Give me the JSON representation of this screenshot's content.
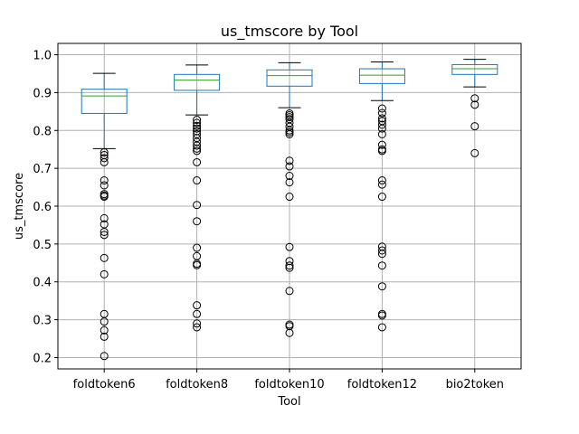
{
  "chart_data": {
    "type": "box",
    "title": "us_tmscore by Tool",
    "xlabel": "Tool",
    "ylabel": "us_tmscore",
    "ylim": [
      0.17,
      1.03
    ],
    "yticks": [
      0.2,
      0.3,
      0.4,
      0.5,
      0.6,
      0.7,
      0.8,
      0.9,
      1.0
    ],
    "ytick_labels": [
      "0.2",
      "0.3",
      "0.4",
      "0.5",
      "0.6",
      "0.7",
      "0.8",
      "0.9",
      "1.0"
    ],
    "grid": true,
    "categories": [
      "foldtoken6",
      "foldtoken8",
      "foldtoken10",
      "foldtoken12",
      "bio2token"
    ],
    "colors": {
      "box": "#1f77b4",
      "median": "#2ca02c",
      "whisker": "#000000",
      "grid": "#b0b0b0"
    },
    "boxes": [
      {
        "name": "foldtoken6",
        "whislo": 0.752,
        "q1": 0.845,
        "med": 0.891,
        "q3": 0.909,
        "whishi": 0.951,
        "fliers": [
          0.742,
          0.735,
          0.727,
          0.716,
          0.668,
          0.655,
          0.632,
          0.628,
          0.625,
          0.568,
          0.552,
          0.532,
          0.524,
          0.463,
          0.42,
          0.315,
          0.295,
          0.272,
          0.255,
          0.204
        ]
      },
      {
        "name": "foldtoken8",
        "whislo": 0.841,
        "q1": 0.906,
        "med": 0.933,
        "q3": 0.948,
        "whishi": 0.973,
        "fliers": [
          0.828,
          0.82,
          0.812,
          0.805,
          0.798,
          0.79,
          0.78,
          0.77,
          0.76,
          0.752,
          0.746,
          0.716,
          0.668,
          0.603,
          0.56,
          0.49,
          0.468,
          0.448,
          0.444,
          0.338,
          0.315,
          0.29,
          0.28
        ]
      },
      {
        "name": "foldtoken10",
        "whislo": 0.86,
        "q1": 0.917,
        "med": 0.945,
        "q3": 0.96,
        "whishi": 0.979,
        "fliers": [
          0.845,
          0.84,
          0.835,
          0.83,
          0.82,
          0.81,
          0.8,
          0.795,
          0.79,
          0.72,
          0.705,
          0.68,
          0.663,
          0.625,
          0.492,
          0.455,
          0.443,
          0.437,
          0.376,
          0.287,
          0.283,
          0.265
        ]
      },
      {
        "name": "foldtoken12",
        "whislo": 0.879,
        "q1": 0.924,
        "med": 0.946,
        "q3": 0.963,
        "whishi": 0.981,
        "fliers": [
          0.858,
          0.846,
          0.832,
          0.825,
          0.815,
          0.805,
          0.79,
          0.762,
          0.75,
          0.746,
          0.668,
          0.657,
          0.625,
          0.493,
          0.483,
          0.474,
          0.443,
          0.388,
          0.315,
          0.311,
          0.28
        ]
      },
      {
        "name": "bio2token",
        "whislo": 0.915,
        "q1": 0.948,
        "med": 0.963,
        "q3": 0.974,
        "whishi": 0.988,
        "fliers": [
          0.885,
          0.868,
          0.811,
          0.74
        ]
      }
    ]
  }
}
